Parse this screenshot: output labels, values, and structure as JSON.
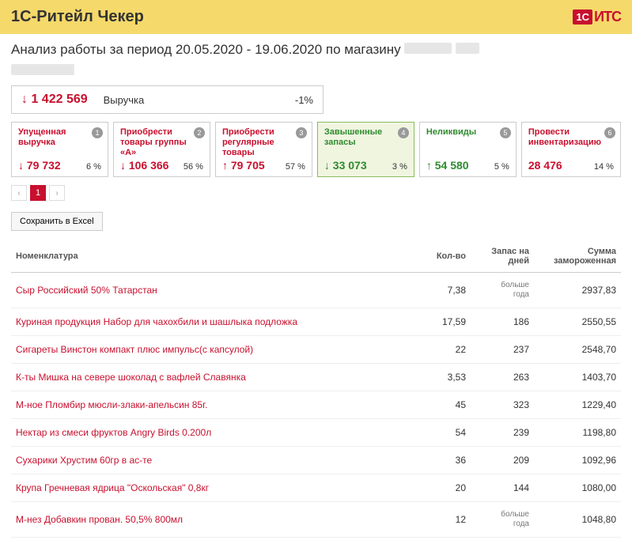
{
  "header": {
    "title": "1С-Ритейл Чекер",
    "logo_1c": "1C",
    "logo_its": "ИТС"
  },
  "subtitle": "Анализ работы за период 20.05.2020 - 19.06.2020 по магазину",
  "revenue": {
    "arrow": "↓",
    "value": "1 422 569",
    "label": "Выручка",
    "pct": "-1%"
  },
  "cards": [
    {
      "num": "1",
      "title": "Упущенная выручка",
      "arrow": "↓",
      "arrow_class": "arrow-down",
      "value": "79 732",
      "val_class": "red",
      "pct": "6 %",
      "green": false,
      "active": false
    },
    {
      "num": "2",
      "title": "Приобрести товары группы «А»",
      "arrow": "↓",
      "arrow_class": "arrow-down",
      "value": "106 366",
      "val_class": "red",
      "pct": "56 %",
      "green": false,
      "active": false
    },
    {
      "num": "3",
      "title": "Приобрести регулярные товары",
      "arrow": "↑",
      "arrow_class": "arrow-up",
      "value": "79 705",
      "val_class": "red",
      "pct": "57 %",
      "green": false,
      "active": false
    },
    {
      "num": "4",
      "title": "Завышенные запасы",
      "arrow": "↓",
      "arrow_class": "arrow-down-green",
      "value": "33 073",
      "val_class": "green",
      "pct": "3 %",
      "green": true,
      "active": true
    },
    {
      "num": "5",
      "title": "Неликвиды",
      "arrow": "↑",
      "arrow_class": "arrow-up-green",
      "value": "54 580",
      "val_class": "green",
      "pct": "5 %",
      "green": true,
      "active": false
    },
    {
      "num": "6",
      "title": "Провести инвентаризацию",
      "arrow": "",
      "arrow_class": "",
      "value": "28 476",
      "val_class": "red",
      "pct": "14 %",
      "green": false,
      "active": false
    }
  ],
  "pager": {
    "prev": "‹",
    "current": "1",
    "next": "›"
  },
  "toolbar": {
    "excel": "Сохранить в Excel"
  },
  "table": {
    "headers": [
      "Номенклатура",
      "Кол-во",
      "Запас на дней",
      "Сумма замороженная"
    ],
    "rows": [
      {
        "name": "Сыр Российский 50% Татарстан",
        "qty": "7,38",
        "days": "больше года",
        "sum": "2937,83",
        "days_small": true
      },
      {
        "name": "Куриная продукция Набор для чахохбили и шашлыка подложка",
        "qty": "17,59",
        "days": "186",
        "sum": "2550,55",
        "days_small": false
      },
      {
        "name": "Сигареты Винстон компакт плюс импульс(с капсулой)",
        "qty": "22",
        "days": "237",
        "sum": "2548,70",
        "days_small": false
      },
      {
        "name": "К-ты Мишка на севере шоколад с вафлей Славянка",
        "qty": "3,53",
        "days": "263",
        "sum": "1403,70",
        "days_small": false
      },
      {
        "name": "М-ное Пломбир мюсли-злаки-апельсин 85г.",
        "qty": "45",
        "days": "323",
        "sum": "1229,40",
        "days_small": false
      },
      {
        "name": "Нектар из смеси фруктов Angry Birds 0.200л",
        "qty": "54",
        "days": "239",
        "sum": "1198,80",
        "days_small": false
      },
      {
        "name": "Сухарики Хрустим 60гр в ас-те",
        "qty": "36",
        "days": "209",
        "sum": "1092,96",
        "days_small": false
      },
      {
        "name": "Крупа Гречневая ядрица \"Оскольская\" 0,8кг",
        "qty": "20",
        "days": "144",
        "sum": "1080,00",
        "days_small": false
      },
      {
        "name": "М-нез Добавкин прован. 50,5% 800мл",
        "qty": "12",
        "days": "больше года",
        "sum": "1048,80",
        "days_small": true
      }
    ]
  }
}
